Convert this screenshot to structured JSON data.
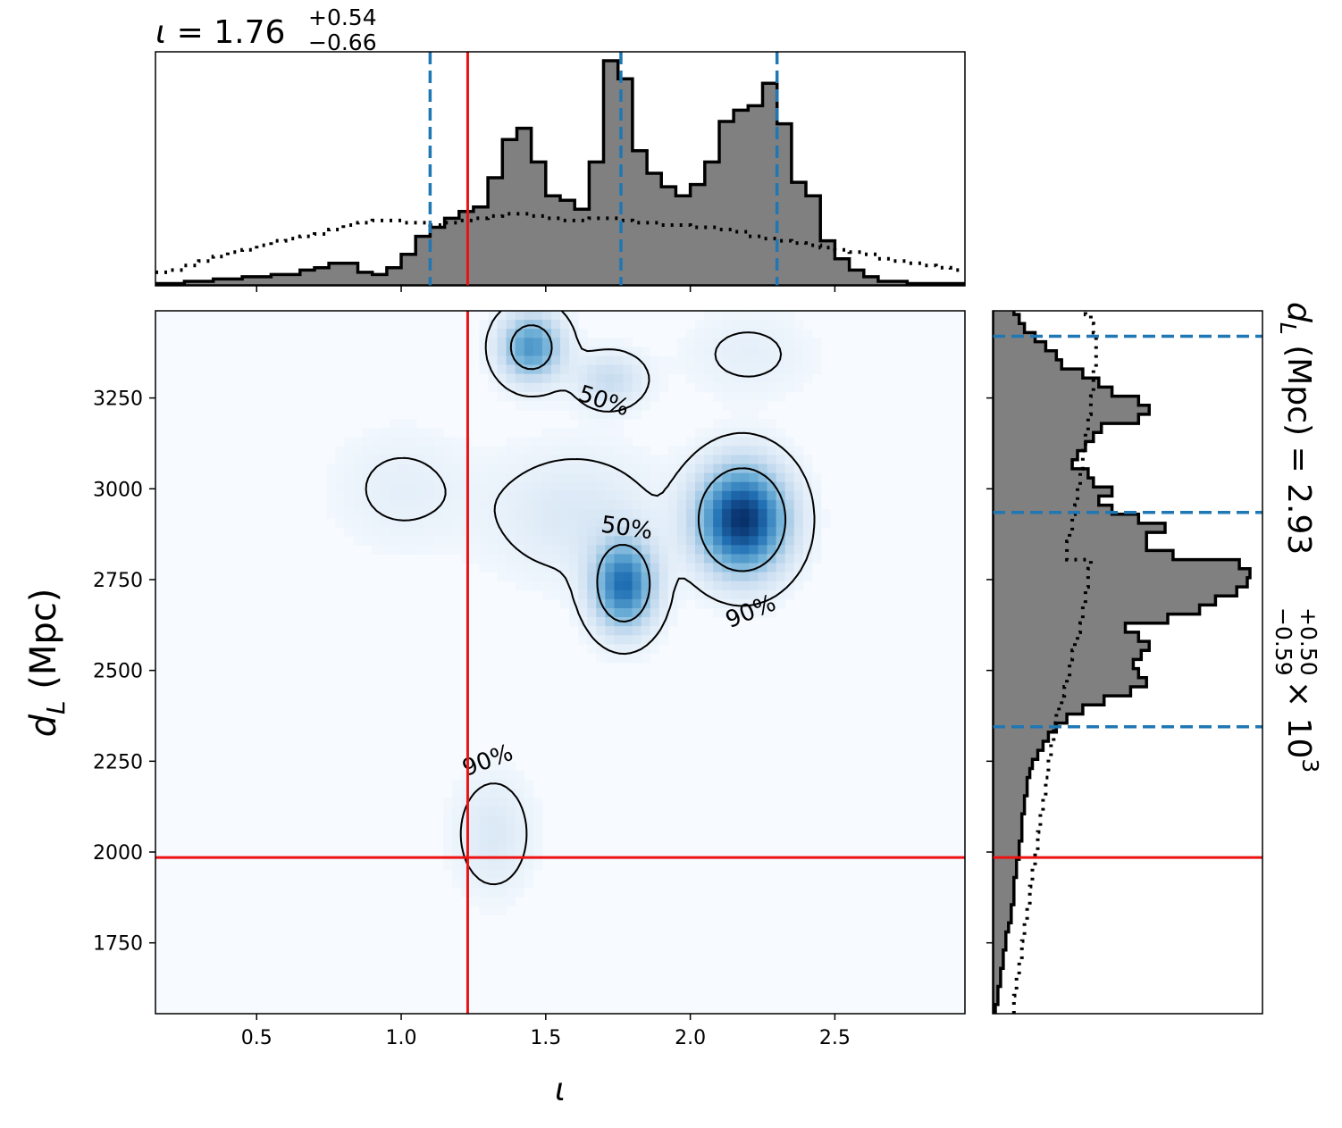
{
  "chart_data": {
    "type": "corner",
    "colors": {
      "truth": "#ee1111",
      "quantile": "#1f77b4",
      "hist_fill": "#808080",
      "hist_edge": "#000000",
      "density_cmap": "Blues"
    },
    "truth": {
      "iota": 1.23,
      "dL": 1985
    },
    "iota_summary": {
      "symbol": "ι",
      "median": "1.76",
      "plus": "+0.54",
      "minus": "−0.66",
      "quantiles": [
        1.1,
        1.76,
        2.3
      ]
    },
    "dL_summary": {
      "label": "d",
      "subscript": "L",
      "unit": "(Mpc)",
      "median": "2.93",
      "plus": "+0.50",
      "minus": "−0.59",
      "multiplier": "× 10",
      "exponent": "3",
      "quantiles": [
        2345,
        2935,
        3420
      ]
    },
    "joint": {
      "xlabel": "ι",
      "ylabel_main": "d",
      "ylabel_sub": "L",
      "ylabel_unit": "(Mpc)",
      "xlim": [
        0.15,
        2.95
      ],
      "ylim": [
        1555,
        3490
      ],
      "xticks": [
        0.5,
        1.0,
        1.5,
        2.0,
        2.5
      ],
      "xtick_labels": [
        "0.5",
        "1.0",
        "1.5",
        "2.0",
        "2.5"
      ],
      "yticks": [
        1750,
        2000,
        2250,
        2500,
        2750,
        3000,
        3250
      ],
      "ytick_labels": [
        "1750",
        "2000",
        "2250",
        "2500",
        "2750",
        "3000",
        "3250"
      ],
      "density_peaks": [
        {
          "x": 2.18,
          "y": 2915,
          "weight": 1.0,
          "sx": 0.1,
          "sy": 95
        },
        {
          "x": 1.77,
          "y": 2735,
          "weight": 0.72,
          "sx": 0.07,
          "sy": 80
        },
        {
          "x": 1.45,
          "y": 3390,
          "weight": 0.55,
          "sx": 0.07,
          "sy": 60
        },
        {
          "x": 1.72,
          "y": 3300,
          "weight": 0.18,
          "sx": 0.08,
          "sy": 50
        },
        {
          "x": 1.6,
          "y": 2930,
          "weight": 0.1,
          "sx": 0.2,
          "sy": 120
        },
        {
          "x": 1.32,
          "y": 2050,
          "weight": 0.1,
          "sx": 0.09,
          "sy": 110
        },
        {
          "x": 1.0,
          "y": 3000,
          "weight": 0.06,
          "sx": 0.16,
          "sy": 110
        },
        {
          "x": 2.2,
          "y": 3370,
          "weight": 0.06,
          "sx": 0.15,
          "sy": 80
        }
      ],
      "contour_labels": [
        {
          "text": "50%",
          "x": 1.7,
          "y": 3240,
          "angle": 18
        },
        {
          "text": "50%",
          "x": 1.78,
          "y": 2890,
          "angle": 8
        },
        {
          "text": "90%",
          "x": 2.21,
          "y": 2660,
          "angle": -22
        },
        {
          "text": "90%",
          "x": 1.3,
          "y": 2250,
          "angle": -20
        }
      ]
    },
    "iota_hist": {
      "bin_width": 0.05,
      "bin_start": 0.15,
      "values": [
        1,
        1,
        2,
        2,
        3,
        3,
        4,
        4,
        5,
        5,
        7,
        8,
        10,
        10,
        6,
        5,
        8,
        14,
        22,
        26,
        30,
        33,
        35,
        48,
        65,
        70,
        55,
        40,
        38,
        34,
        55,
        100,
        92,
        60,
        50,
        44,
        40,
        45,
        55,
        73,
        78,
        80,
        90,
        72,
        46,
        40,
        20,
        12,
        7,
        4,
        2,
        2,
        1,
        1,
        1,
        1
      ],
      "prior": [
        6,
        7,
        9,
        11,
        13,
        15,
        16,
        18,
        20,
        21,
        22,
        23,
        25,
        27,
        28,
        29,
        29,
        28,
        28,
        27,
        28,
        29,
        30,
        31,
        32,
        32,
        31,
        30,
        29,
        29,
        30,
        30,
        29,
        28,
        28,
        27,
        27,
        26,
        26,
        25,
        24,
        22,
        21,
        20,
        19,
        18,
        17,
        16,
        15,
        14,
        12,
        11,
        10,
        9,
        8,
        7
      ]
    },
    "dL_hist": {
      "bin_width": 25,
      "bin_start": 1555,
      "values": [
        0.01,
        0.02,
        0.02,
        0.03,
        0.03,
        0.04,
        0.04,
        0.05,
        0.05,
        0.06,
        0.07,
        0.07,
        0.08,
        0.08,
        0.08,
        0.09,
        0.09,
        0.1,
        0.1,
        0.11,
        0.11,
        0.11,
        0.12,
        0.12,
        0.13,
        0.13,
        0.14,
        0.15,
        0.17,
        0.19,
        0.21,
        0.24,
        0.28,
        0.34,
        0.42,
        0.52,
        0.58,
        0.55,
        0.53,
        0.56,
        0.59,
        0.55,
        0.5,
        0.66,
        0.78,
        0.84,
        0.92,
        0.96,
        0.97,
        0.93,
        0.68,
        0.58,
        0.58,
        0.65,
        0.55,
        0.45,
        0.4,
        0.45,
        0.38,
        0.36,
        0.3,
        0.32,
        0.35,
        0.38,
        0.41,
        0.55,
        0.59,
        0.55,
        0.45,
        0.4,
        0.34,
        0.26,
        0.24,
        0.2,
        0.16,
        0.12,
        0.1,
        0.08
      ],
      "prior": [
        0.08,
        0.08,
        0.09,
        0.09,
        0.1,
        0.1,
        0.11,
        0.11,
        0.12,
        0.12,
        0.13,
        0.13,
        0.14,
        0.14,
        0.15,
        0.15,
        0.16,
        0.16,
        0.17,
        0.17,
        0.18,
        0.18,
        0.19,
        0.19,
        0.2,
        0.2,
        0.21,
        0.21,
        0.22,
        0.22,
        0.23,
        0.23,
        0.24,
        0.25,
        0.26,
        0.27,
        0.28,
        0.29,
        0.29,
        0.3,
        0.31,
        0.32,
        0.33,
        0.34,
        0.34,
        0.35,
        0.35,
        0.36,
        0.36,
        0.37,
        0.28,
        0.28,
        0.29,
        0.3,
        0.3,
        0.31,
        0.32,
        0.32,
        0.33,
        0.33,
        0.34,
        0.34,
        0.35,
        0.35,
        0.36,
        0.36,
        0.37,
        0.37,
        0.38,
        0.38,
        0.38,
        0.39,
        0.39,
        0.39,
        0.39,
        0.38,
        0.37,
        0.35
      ]
    }
  }
}
